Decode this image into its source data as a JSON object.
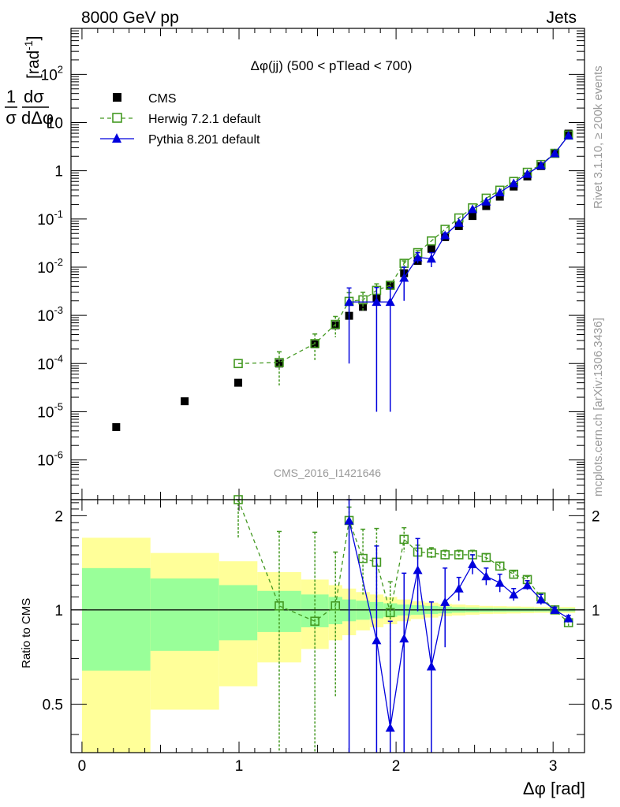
{
  "header": {
    "left": "8000 GeV pp",
    "right": "Jets"
  },
  "side_labels": {
    "rivet": "Rivet 3.1.10, ≥ 200k events",
    "mcplots": "mcplots.cern.ch [arXiv:1306.3436]"
  },
  "watermark": "CMS_2016_I1421646",
  "chart_data": {
    "type": "scatter",
    "title": "Δφ(jj) (500 < pTlead <  700)",
    "xlabel": "Δφ [rad]",
    "ylabel": "1/σ dσ/dΔφ [rad⁻¹]",
    "ylabel_parts": {
      "num": "1",
      "den": "σ",
      "dnum": "dσ",
      "dden": "dΔφ",
      "unit": "[rad",
      "unit_exp": "-1",
      "unit_close": "]"
    },
    "ratio_ylabel": "Ratio to CMS",
    "xlim": [
      -0.07,
      3.2
    ],
    "ylim": [
      1.5e-07,
      900
    ],
    "ratio_ylim": [
      0.35,
      2.25
    ],
    "yscale": "log",
    "legend_position": "top-left",
    "x_ticks": [
      "0",
      "1",
      "2",
      "3"
    ],
    "y_ticks": [
      {
        "b": "10",
        "e": "-6"
      },
      {
        "b": "10",
        "e": "-5"
      },
      {
        "b": "10",
        "e": "-4"
      },
      {
        "b": "10",
        "e": "-3"
      },
      {
        "b": "10",
        "e": "-2"
      },
      {
        "b": "10",
        "e": "-1"
      },
      {
        "b": "1",
        "e": ""
      },
      {
        "b": "10",
        "e": ""
      },
      {
        "b": "10",
        "e": "2"
      }
    ],
    "ratio_ticks": [
      "0.5",
      "1",
      "2"
    ],
    "bins": [
      0.0,
      0.436,
      0.873,
      1.117,
      1.396,
      1.571,
      1.658,
      1.745,
      1.833,
      1.92,
      2.007,
      2.094,
      2.182,
      2.269,
      2.356,
      2.443,
      2.531,
      2.618,
      2.705,
      2.793,
      2.88,
      2.967,
      3.054,
      3.141
    ],
    "series": [
      {
        "name": "CMS",
        "color": "#000000",
        "marker": "square",
        "x": [
          0.218,
          0.654,
          0.995,
          1.256,
          1.483,
          1.614,
          1.701,
          1.789,
          1.876,
          1.963,
          2.051,
          2.138,
          2.225,
          2.312,
          2.4,
          2.487,
          2.574,
          2.661,
          2.749,
          2.836,
          2.923,
          3.011,
          3.098
        ],
        "y": [
          4.8e-06,
          1.65e-05,
          4e-05,
          0.0001,
          0.00025,
          0.00062,
          0.00098,
          0.0015,
          0.0023,
          0.0043,
          0.0075,
          0.0135,
          0.024,
          0.042,
          0.071,
          0.115,
          0.185,
          0.29,
          0.47,
          0.76,
          1.25,
          2.3,
          5.9
        ]
      },
      {
        "name": "Herwig 7.2.1 default",
        "color": "#449922",
        "marker": "open-square",
        "x": [
          0.995,
          1.256,
          1.483,
          1.614,
          1.701,
          1.789,
          1.876,
          1.963,
          2.051,
          2.138,
          2.225,
          2.312,
          2.4,
          2.487,
          2.574,
          2.661,
          2.749,
          2.836,
          2.923,
          3.011,
          3.098
        ],
        "y": [
          0.0001,
          0.000105,
          0.00026,
          0.00065,
          0.00195,
          0.0021,
          0.0033,
          0.0042,
          0.012,
          0.02,
          0.035,
          0.061,
          0.105,
          0.17,
          0.27,
          0.395,
          0.6,
          0.93,
          1.35,
          2.3,
          5.5
        ],
        "yerr": [
          0.0,
          7e-05,
          0.00015,
          0.0003,
          0.001,
          0.0009,
          0.0012,
          0.0008,
          0.0015,
          0.002,
          0,
          0,
          0,
          0,
          0,
          0,
          0,
          0,
          0,
          0,
          0
        ],
        "ratio": [
          2.35,
          1.03,
          0.92,
          1.03,
          1.93,
          1.46,
          1.42,
          0.98,
          1.68,
          1.53,
          1.52,
          1.5,
          1.5,
          1.5,
          1.47,
          1.38,
          1.3,
          1.25,
          1.1,
          1.0,
          0.91
        ],
        "ratio_err": [
          0.65,
          0.75,
          0.85,
          0.5,
          0.2,
          0.35,
          0.4,
          0.25,
          0.15,
          0.08,
          0.06,
          0.05,
          0.05,
          0.05,
          0.04,
          0.04,
          0.03,
          0.03,
          0.03,
          0.02,
          0.02
        ]
      },
      {
        "name": "Pythia 8.201 default",
        "color": "#0000dd",
        "marker": "triangle",
        "x": [
          1.701,
          1.876,
          1.963,
          2.051,
          2.138,
          2.225,
          2.312,
          2.4,
          2.487,
          2.574,
          2.661,
          2.749,
          2.836,
          2.923,
          3.011,
          3.098
        ],
        "y": [
          0.0019,
          0.0019,
          0.0019,
          0.006,
          0.016,
          0.015,
          0.046,
          0.083,
          0.16,
          0.23,
          0.355,
          0.55,
          0.86,
          1.3,
          2.3,
          5.4
        ],
        "yerr": [
          0.0018,
          0.00189,
          0.00189,
          0.004,
          0.004,
          0.005,
          0.005,
          0,
          0,
          0,
          0,
          0,
          0,
          0,
          0,
          0
        ],
        "ratio": [
          1.93,
          0.8,
          0.42,
          0.81,
          1.34,
          0.66,
          1.06,
          1.17,
          1.4,
          1.28,
          1.22,
          1.12,
          1.2,
          1.08,
          1.0,
          0.94
        ],
        "ratio_err": [
          1.6,
          0.8,
          0.5,
          0.5,
          0.35,
          0.4,
          0.3,
          0.1,
          0.1,
          0.08,
          0.08,
          0.05,
          0.04,
          0.04,
          0.02,
          0.02
        ]
      }
    ],
    "uncertainty_bands": {
      "inner_color": "#99ff99",
      "outer_color": "#ffff99",
      "inner": [
        0.36,
        0.26,
        0.2,
        0.15,
        0.12,
        0.1,
        0.08,
        0.07,
        0.06,
        0.05,
        0.04,
        0.035,
        0.03,
        0.025,
        0.02,
        0.018,
        0.016,
        0.015,
        0.014,
        0.013,
        0.012,
        0.012,
        0.012
      ],
      "outer": [
        0.7,
        0.52,
        0.43,
        0.32,
        0.25,
        0.2,
        0.17,
        0.14,
        0.12,
        0.1,
        0.08,
        0.065,
        0.055,
        0.045,
        0.04,
        0.035,
        0.03,
        0.028,
        0.026,
        0.024,
        0.022,
        0.022,
        0.022
      ]
    }
  }
}
